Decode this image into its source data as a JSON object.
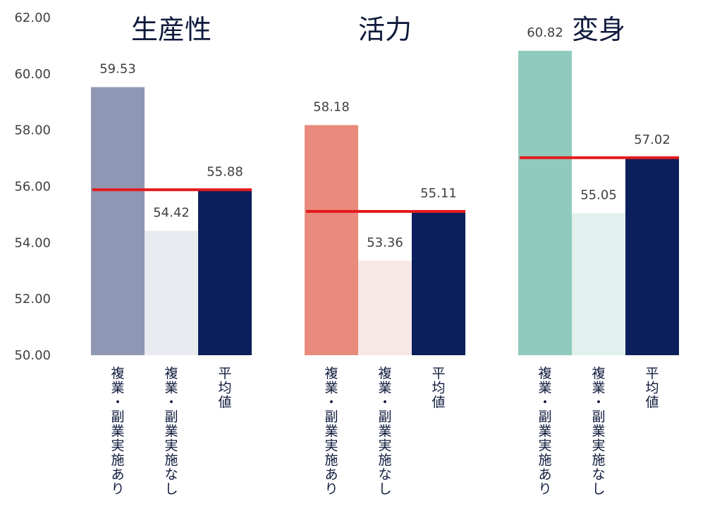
{
  "chart_data": {
    "type": "bar",
    "ylim": [
      50,
      62
    ],
    "yticks": [
      "50.00",
      "52.00",
      "54.00",
      "56.00",
      "58.00",
      "60.00",
      "62.00"
    ],
    "grid": false,
    "average_line_color": "#e41a1c",
    "panels": [
      {
        "title": "生産性",
        "categories": [
          "複業・副業実施あり",
          "複業・副業実施なし",
          "平均値"
        ],
        "values": [
          59.53,
          54.42,
          55.88
        ],
        "labels": [
          "59.53",
          "54.42",
          "55.88"
        ],
        "colors": [
          "#8e98b4",
          "#e8ebf0",
          "#0b1f5c"
        ],
        "average": 55.88
      },
      {
        "title": "活力",
        "categories": [
          "複業・副業実施あり",
          "複業・副業実施なし",
          "平均値"
        ],
        "values": [
          58.18,
          53.36,
          55.11
        ],
        "labels": [
          "58.18",
          "53.36",
          "55.11"
        ],
        "colors": [
          "#e98b7c",
          "#f6e8e6",
          "#0b1f5c"
        ],
        "average": 55.11
      },
      {
        "title": "変身",
        "categories": [
          "複業・副業実施あり",
          "複業・副業実施なし",
          "平均値"
        ],
        "values": [
          60.82,
          55.05,
          57.02
        ],
        "labels": [
          "60.82",
          "55.05",
          "57.02"
        ],
        "colors": [
          "#8fcabd",
          "#e2f1ed",
          "#0b1f5c"
        ],
        "average": 57.02
      }
    ]
  }
}
